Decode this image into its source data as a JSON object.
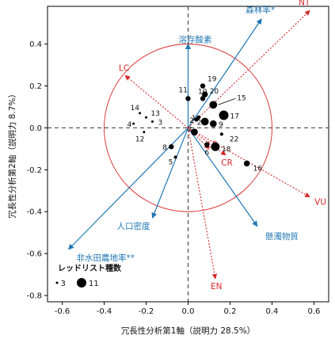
{
  "chart_data": {
    "type": "scatter",
    "title": "",
    "xlabel": "冗長性分析第1軸（説明力 28.5%）",
    "ylabel": "冗長性分析第2軸（説明力 8.7%）",
    "xlim": [
      -0.67,
      0.67
    ],
    "ylim": [
      -0.83,
      0.58
    ],
    "xticks": [
      -0.6,
      -0.4,
      -0.2,
      0.0,
      0.2,
      0.4,
      0.6
    ],
    "yticks": [
      -0.8,
      -0.6,
      -0.4,
      -0.2,
      0.0,
      0.2,
      0.4
    ],
    "xtick_labels": [
      "-0.6",
      "-0.4",
      "-0.2",
      "0.0",
      "0.2",
      "0.4",
      "0.6"
    ],
    "ytick_labels": [
      "-0.8",
      "-0.6",
      "-0.4",
      "-0.2",
      "0.0",
      "0.2",
      "0.4"
    ],
    "grid": false,
    "circle": {
      "cx": 0.0,
      "cy": 0.0,
      "r": 0.4
    },
    "sites": [
      {
        "label": "1",
        "x": 0.05,
        "y": 0.05,
        "n": 5
      },
      {
        "label": "2",
        "x": 0.04,
        "y": 0.04,
        "n": 5
      },
      {
        "label": "3",
        "x": -0.17,
        "y": 0.03,
        "n": 3
      },
      {
        "label": "4",
        "x": -0.26,
        "y": 0.02,
        "n": 3
      },
      {
        "label": "5",
        "x": -0.06,
        "y": -0.14,
        "n": 4
      },
      {
        "label": "6",
        "x": 0.09,
        "y": -0.08,
        "n": 6
      },
      {
        "label": "7",
        "x": 0.03,
        "y": -0.02,
        "n": 8
      },
      {
        "label": "8",
        "x": -0.08,
        "y": -0.09,
        "n": 6
      },
      {
        "label": "9",
        "x": 0.12,
        "y": 0.02,
        "n": 8
      },
      {
        "label": "10",
        "x": 0.07,
        "y": 0.14,
        "n": 6
      },
      {
        "label": "11",
        "x": 0.0,
        "y": 0.14,
        "n": 6
      },
      {
        "label": "12",
        "x": -0.21,
        "y": -0.02,
        "n": 3
      },
      {
        "label": "13",
        "x": -0.2,
        "y": 0.05,
        "n": 3
      },
      {
        "label": "14",
        "x": -0.23,
        "y": 0.07,
        "n": 3
      },
      {
        "label": "15",
        "x": 0.12,
        "y": 0.11,
        "n": 9
      },
      {
        "label": "16",
        "x": 0.28,
        "y": -0.17,
        "n": 7
      },
      {
        "label": "17",
        "x": 0.17,
        "y": 0.06,
        "n": 11
      },
      {
        "label": "18",
        "x": 0.13,
        "y": -0.09,
        "n": 10
      },
      {
        "label": "19",
        "x": 0.07,
        "y": 0.2,
        "n": 6
      },
      {
        "label": "20",
        "x": 0.08,
        "y": 0.16,
        "n": 7
      },
      {
        "label": "21",
        "x": 0.08,
        "y": 0.03,
        "n": 9
      },
      {
        "label": "22",
        "x": 0.16,
        "y": -0.03,
        "n": 4
      }
    ],
    "env_vectors": [
      {
        "label": "森林率*",
        "x": 0.35,
        "y": 0.52
      },
      {
        "label": "溶存酸素",
        "x": 0.0,
        "y": 0.4
      },
      {
        "label": "人口密度",
        "x": -0.17,
        "y": -0.43
      },
      {
        "label": "非水田農地率**",
        "x": -0.57,
        "y": -0.58
      },
      {
        "label": "懸濁物質",
        "x": 0.33,
        "y": -0.47
      }
    ],
    "species_vectors": [
      {
        "label": "NT",
        "x": 0.58,
        "y": 0.56
      },
      {
        "label": "LC",
        "x": -0.3,
        "y": 0.25
      },
      {
        "label": "LP",
        "x": 0.1,
        "y": -0.1
      },
      {
        "label": "CR",
        "x": 0.18,
        "y": -0.13
      },
      {
        "label": "VU",
        "x": 0.58,
        "y": -0.33
      },
      {
        "label": "EN",
        "x": 0.13,
        "y": -0.72
      }
    ],
    "legend": {
      "title": "レッドリスト種数",
      "position": "bottom-left",
      "items": [
        {
          "label": "3",
          "n": 3
        },
        {
          "label": "11",
          "n": 11
        }
      ]
    },
    "colors": {
      "env": "#1f77b4",
      "species": "#d62728",
      "circle": "#d62728",
      "points": "#000000",
      "zero_lines": "#333333"
    }
  }
}
